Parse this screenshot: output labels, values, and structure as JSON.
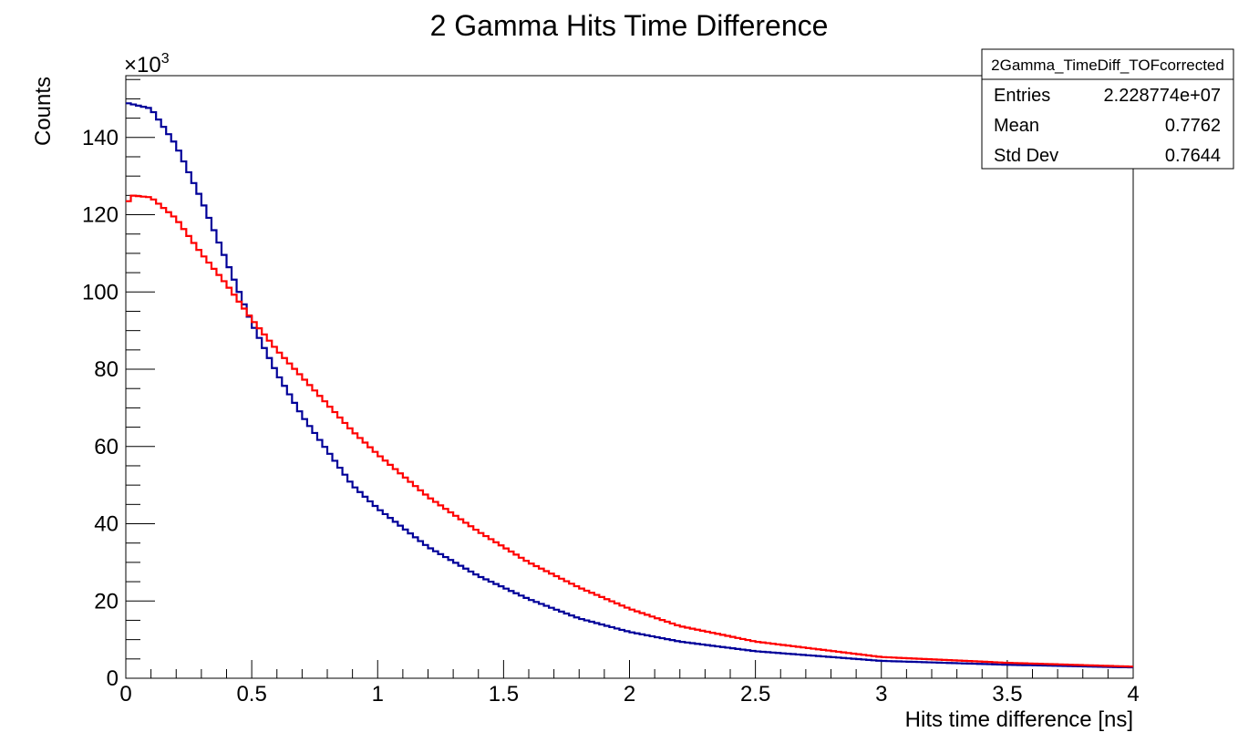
{
  "chart_data": {
    "type": "histogram",
    "title": "2 Gamma Hits Time Difference",
    "xlabel": "Hits time difference [ns]",
    "ylabel": "Counts",
    "y_multiplier": "×10",
    "y_multiplier_exp": "3",
    "xlim": [
      0,
      4
    ],
    "ylim": [
      0,
      156
    ],
    "x_ticks": [
      0,
      0.5,
      1,
      1.5,
      2,
      2.5,
      3,
      3.5,
      4
    ],
    "x_tick_labels": [
      "0",
      "0.5",
      "1",
      "1.5",
      "2",
      "2.5",
      "3",
      "3.5",
      "4"
    ],
    "y_ticks": [
      0,
      20,
      40,
      60,
      80,
      100,
      120,
      140
    ],
    "y_tick_labels": [
      "0",
      "20",
      "40",
      "60",
      "80",
      "100",
      "120",
      "140"
    ],
    "bins": 200,
    "grid": false,
    "series": [
      {
        "color": "#000099",
        "points": [
          [
            0,
            149
          ],
          [
            0.1,
            147.5
          ],
          [
            0.2,
            138
          ],
          [
            0.3,
            124
          ],
          [
            0.4,
            108
          ],
          [
            0.5,
            92
          ],
          [
            0.6,
            79
          ],
          [
            0.7,
            68
          ],
          [
            0.8,
            59
          ],
          [
            0.9,
            50
          ],
          [
            1.0,
            44
          ],
          [
            1.2,
            34
          ],
          [
            1.4,
            26.5
          ],
          [
            1.6,
            20.5
          ],
          [
            1.8,
            15.5
          ],
          [
            2.0,
            12
          ],
          [
            2.2,
            9.5
          ],
          [
            2.5,
            7
          ],
          [
            3.0,
            4.5
          ],
          [
            3.5,
            3.5
          ],
          [
            4.0,
            2.8
          ]
        ]
      },
      {
        "color": "#ff0000",
        "points": [
          [
            0,
            122
          ],
          [
            0.02,
            125
          ],
          [
            0.1,
            124.5
          ],
          [
            0.2,
            119
          ],
          [
            0.3,
            110
          ],
          [
            0.4,
            102
          ],
          [
            0.5,
            93
          ],
          [
            0.6,
            85
          ],
          [
            0.7,
            78
          ],
          [
            0.8,
            71
          ],
          [
            0.9,
            64
          ],
          [
            1.0,
            58
          ],
          [
            1.2,
            47
          ],
          [
            1.4,
            38
          ],
          [
            1.6,
            30
          ],
          [
            1.8,
            23.5
          ],
          [
            2.0,
            18
          ],
          [
            2.2,
            13.5
          ],
          [
            2.5,
            9.5
          ],
          [
            3.0,
            5.5
          ],
          [
            3.5,
            4
          ],
          [
            4.0,
            3
          ]
        ]
      }
    ]
  },
  "stats_box": {
    "title": "2Gamma_TimeDiff_TOFcorrected",
    "rows": [
      {
        "label": "Entries",
        "value": "2.228774e+07"
      },
      {
        "label": "Mean",
        "value": "0.7762"
      },
      {
        "label": "Std Dev",
        "value": "0.7644"
      }
    ]
  }
}
